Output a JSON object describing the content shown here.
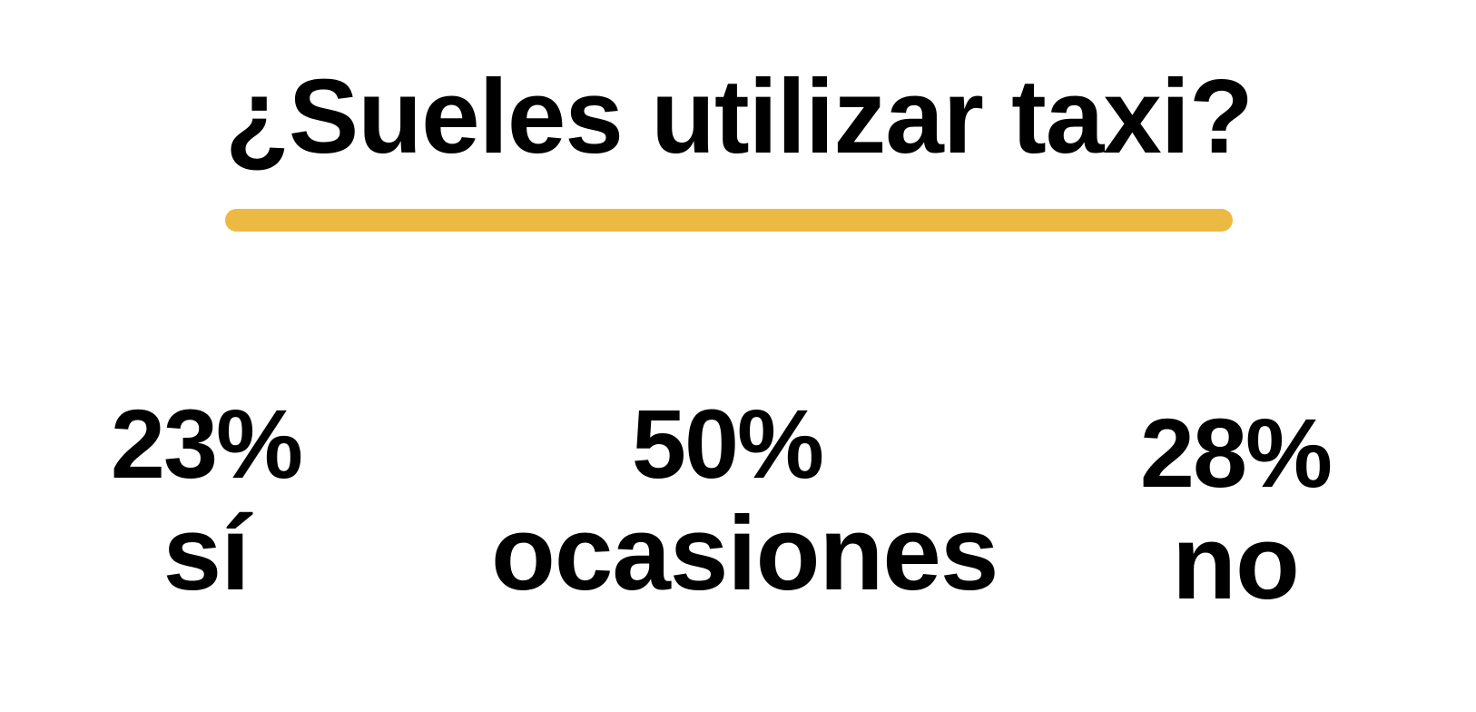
{
  "title": "¿Sueles utilizar taxi?",
  "accent_color": "#ecb942",
  "stats": [
    {
      "percent": "23%",
      "label": "sí"
    },
    {
      "percent": "50%",
      "label": "ocasiones"
    },
    {
      "percent": "28%",
      "label": "no"
    }
  ]
}
